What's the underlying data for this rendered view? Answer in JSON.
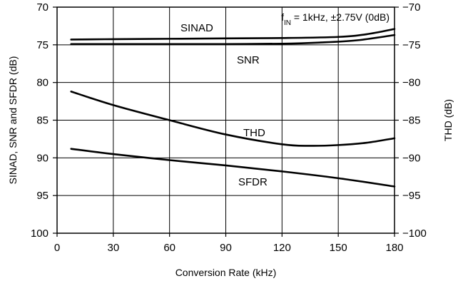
{
  "chart_data": {
    "type": "line",
    "xlabel": "Conversion Rate (kHz)",
    "ylabel_left": "SINAD, SNR and SFDR (dB)",
    "ylabel_right": "THD (dB)",
    "annotation": {
      "prefix": "f",
      "subscript": "IN",
      "suffix": " = 1kHz, ±2.75V (0dB)"
    },
    "xlim": [
      0,
      180
    ],
    "ylim_left": [
      70,
      100
    ],
    "ylim_right": [
      -70,
      -100
    ],
    "left_axis_inverted": true,
    "grid": true,
    "x_ticks": [
      "0",
      "30",
      "60",
      "90",
      "120",
      "150",
      "180"
    ],
    "y_ticks_left": [
      "70",
      "75",
      "80",
      "85",
      "90",
      "95",
      "100"
    ],
    "y_ticks_right": [
      "−70",
      "−75",
      "−80",
      "−85",
      "−90",
      "−95",
      "−100"
    ],
    "series": [
      {
        "name": "SINAD",
        "axis": "left",
        "x": [
          7.5,
          30,
          60,
          90,
          120,
          150,
          165,
          180
        ],
        "y": [
          74.3,
          74.25,
          74.2,
          74.15,
          74.1,
          73.95,
          73.6,
          72.9
        ]
      },
      {
        "name": "SNR",
        "axis": "left",
        "x": [
          7.5,
          30,
          60,
          90,
          120,
          140,
          160,
          180
        ],
        "y": [
          74.9,
          74.9,
          74.9,
          74.9,
          74.85,
          74.7,
          74.4,
          73.7
        ]
      },
      {
        "name": "THD",
        "axis": "right",
        "x": [
          7.5,
          30,
          60,
          90,
          120,
          135,
          150,
          165,
          180
        ],
        "y": [
          -81.2,
          -83.0,
          -85.0,
          -86.9,
          -88.2,
          -88.4,
          -88.3,
          -88.0,
          -87.4
        ]
      },
      {
        "name": "SFDR",
        "axis": "left",
        "x": [
          7.5,
          30,
          60,
          90,
          120,
          150,
          180
        ],
        "y": [
          88.8,
          89.5,
          90.3,
          91.0,
          91.8,
          92.7,
          93.8
        ]
      }
    ]
  }
}
